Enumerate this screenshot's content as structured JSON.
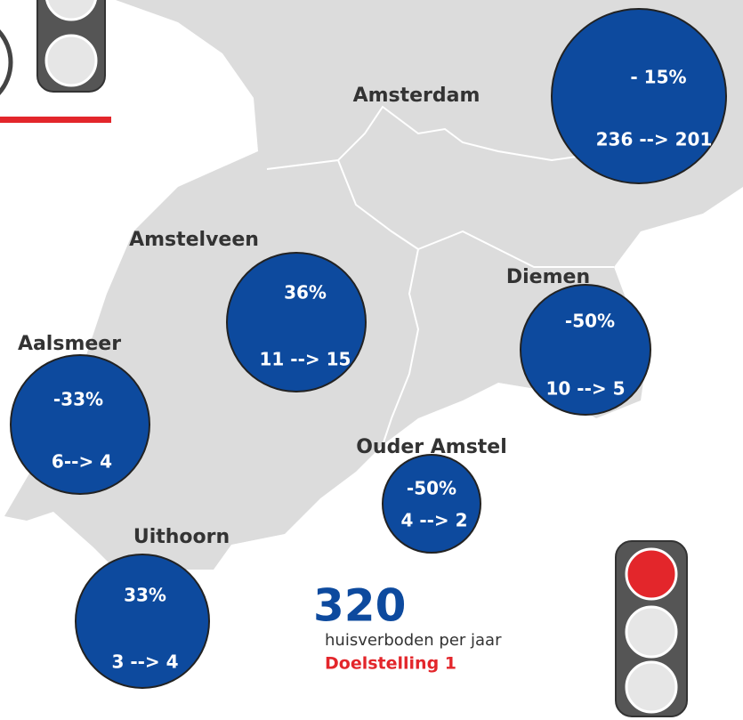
{
  "regions": [
    {
      "name": "Amsterdam",
      "change": "- 15%",
      "counts": "236  --> 201"
    },
    {
      "name": "Amstelveen",
      "change": "36%",
      "counts": "11 --> 15"
    },
    {
      "name": "Diemen",
      "change": "-50%",
      "counts": "10 --> 5"
    },
    {
      "name": "Aalsmeer",
      "change": "-33%",
      "counts": "6--> 4"
    },
    {
      "name": "Ouder Amstel",
      "change": "-50%",
      "counts": "4 --> 2"
    },
    {
      "name": "Uithoorn",
      "change": "33%",
      "counts": "3 --> 4"
    }
  ],
  "total": {
    "number": "320",
    "caption": "huisverboden per jaar",
    "goal": "Doelstelling 1"
  }
}
